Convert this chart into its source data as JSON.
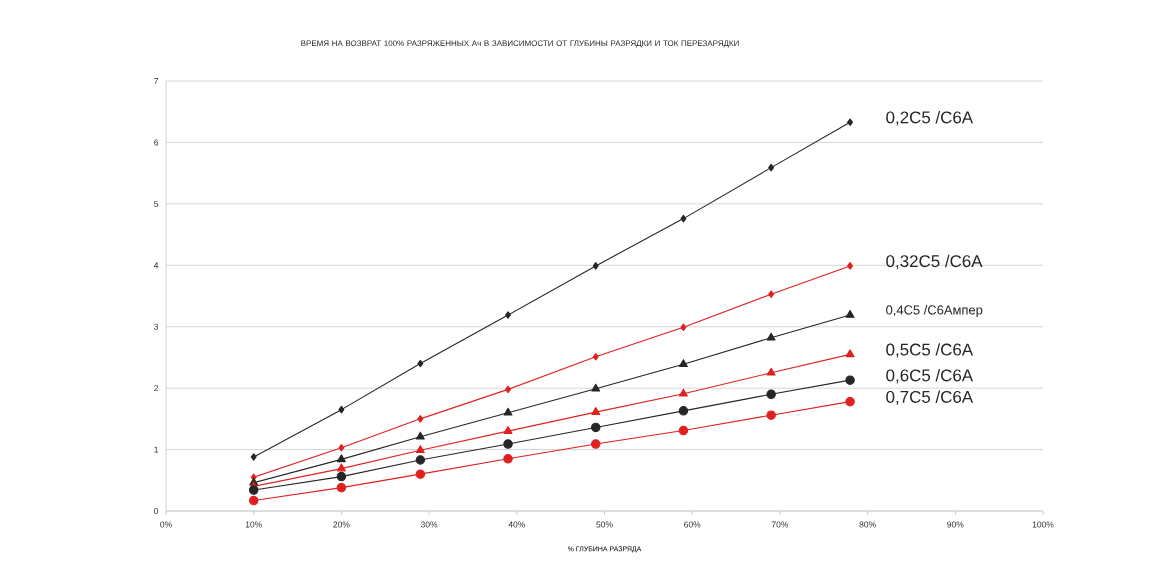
{
  "chart_data": {
    "type": "line",
    "title": "ВРЕМЯ НА ВОЗВРАТ 100% РАЗРЯЖЕННЫХ Ач В ЗАВИСИМОСТИ ОТ ГЛУБИНЫ РАЗРЯДКИ И ТОК ПЕРЕЗАРЯДКИ",
    "xlabel": "% ГЛУБИНА РАЗРЯДА",
    "x": [
      10,
      20,
      29,
      39,
      49,
      59,
      69,
      78
    ],
    "xlim": [
      0,
      100
    ],
    "xticks": [
      {
        "value": 0,
        "label": "0%"
      },
      {
        "value": 10,
        "label": "10%"
      },
      {
        "value": 20,
        "label": "20%"
      },
      {
        "value": 30,
        "label": "30%"
      },
      {
        "value": 40,
        "label": "40%"
      },
      {
        "value": 50,
        "label": "50%"
      },
      {
        "value": 60,
        "label": "60%"
      },
      {
        "value": 70,
        "label": "70%"
      },
      {
        "value": 80,
        "label": "80%"
      },
      {
        "value": 90,
        "label": "90%"
      },
      {
        "value": 100,
        "label": "100%"
      }
    ],
    "ylim": [
      0,
      7
    ],
    "yticks": [
      0,
      1,
      2,
      3,
      4,
      5,
      6,
      7
    ],
    "grid": "y",
    "legend": false,
    "line_style": "solid",
    "series": [
      {
        "name": "0,2C5 /C6A",
        "color": "#262626",
        "marker": "diamond",
        "values": [
          0.88,
          1.65,
          2.4,
          3.19,
          3.99,
          4.76,
          5.59,
          6.33
        ]
      },
      {
        "name": "0,32C5 /C6A",
        "color": "#e02020",
        "marker": "diamond",
        "values": [
          0.55,
          1.03,
          1.5,
          1.98,
          2.51,
          2.99,
          3.53,
          3.99
        ]
      },
      {
        "name": "0,4C5 /C6Ампер",
        "color": "#262626",
        "marker": "triangle",
        "values": [
          0.46,
          0.84,
          1.21,
          1.6,
          1.99,
          2.39,
          2.82,
          3.19
        ]
      },
      {
        "name": "0,5C5 /C6A",
        "color": "#e02020",
        "marker": "triangle",
        "values": [
          0.4,
          0.69,
          0.99,
          1.3,
          1.61,
          1.91,
          2.25,
          2.55
        ]
      },
      {
        "name": "0,6C5 /C6A",
        "color": "#262626",
        "marker": "circle",
        "values": [
          0.34,
          0.56,
          0.83,
          1.09,
          1.36,
          1.63,
          1.9,
          2.13
        ]
      },
      {
        "name": "0,7C5 /C6A",
        "color": "#e02020",
        "marker": "circle",
        "values": [
          0.17,
          0.38,
          0.6,
          0.85,
          1.09,
          1.31,
          1.56,
          1.78
        ]
      }
    ]
  }
}
